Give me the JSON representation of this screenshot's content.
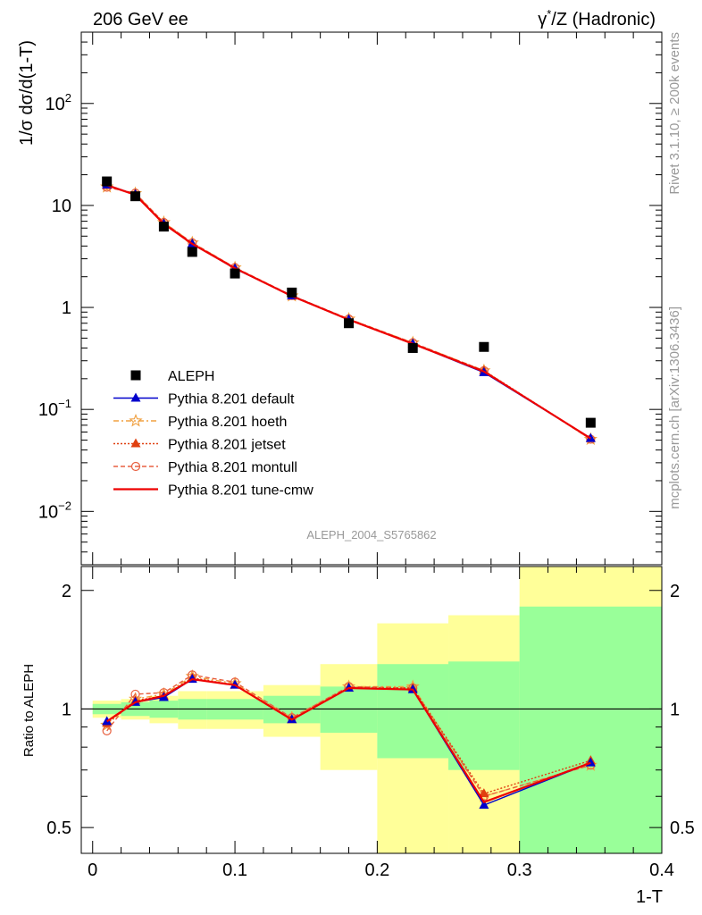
{
  "header": {
    "left": "206 GeV ee",
    "right_prefix": "γ",
    "right_sup": "*",
    "right_suffix": "/Z (Hadronic)"
  },
  "side_text": {
    "rivet": "Rivet 3.1.10, ≥ 200k events",
    "mcplots": "mcplots.cern.ch [arXiv:1306.3436]"
  },
  "analysis_id": "ALEPH_2004_S5765862",
  "colors": {
    "data": "#000000",
    "default": "#0000cc",
    "hoeth": "#f0a040",
    "jetset": "#e04010",
    "montull": "#e86040",
    "tune_cmw": "#ee0000",
    "band_inner": "#99ff99",
    "band_outer": "#ffff99"
  },
  "chart_data": [
    {
      "type": "scatter",
      "panel": "main",
      "ylabel": "1/σ  dσ/d(1-T)",
      "yscale": "log",
      "ylim": [
        0.003,
        500
      ],
      "xlim": [
        -0.008,
        0.4
      ],
      "y_ticks": [
        {
          "value": 0.01,
          "label": "10",
          "sup": "−2"
        },
        {
          "value": 0.1,
          "label": "10",
          "sup": "−1"
        },
        {
          "value": 1,
          "label": "1",
          "sup": ""
        },
        {
          "value": 10,
          "label": "10",
          "sup": ""
        },
        {
          "value": 100,
          "label": "10",
          "sup": "2"
        }
      ],
      "x": [
        0.01,
        0.03,
        0.05,
        0.07,
        0.1,
        0.14,
        0.18,
        0.225,
        0.275,
        0.35
      ],
      "data": {
        "name": "ALEPH",
        "values": [
          17.2,
          12.3,
          6.2,
          3.5,
          2.15,
          1.4,
          0.7,
          0.4,
          0.41,
          0.074
        ]
      },
      "series": [
        {
          "name": "Pythia 8.201 default",
          "key": "default",
          "marker": "triangle",
          "dash": "",
          "values": [
            15.9,
            12.8,
            6.6,
            4.2,
            2.4,
            1.3,
            0.76,
            0.44,
            0.23,
            0.052
          ]
        },
        {
          "name": "Pythia 8.201 hoeth",
          "key": "hoeth",
          "marker": "star",
          "dash": "6,3,2,3",
          "values": [
            15.2,
            13.1,
            6.8,
            4.3,
            2.45,
            1.3,
            0.77,
            0.45,
            0.24,
            0.051
          ]
        },
        {
          "name": "Pythia 8.201 jetset",
          "key": "jetset",
          "marker": "triangle",
          "dash": "2,2",
          "values": [
            15.7,
            12.9,
            6.7,
            4.2,
            2.43,
            1.29,
            0.76,
            0.44,
            0.24,
            0.052
          ]
        },
        {
          "name": "Pythia 8.201 montull",
          "key": "montull",
          "marker": "circle",
          "dash": "5,3",
          "values": [
            15.1,
            13.2,
            6.8,
            4.3,
            2.46,
            1.31,
            0.77,
            0.45,
            0.24,
            0.051
          ]
        },
        {
          "name": "Pythia 8.201 tune-cmw",
          "key": "tune_cmw",
          "marker": "none",
          "dash": "",
          "values": [
            15.8,
            12.7,
            6.6,
            4.2,
            2.42,
            1.29,
            0.76,
            0.44,
            0.235,
            0.052
          ]
        }
      ]
    },
    {
      "type": "line",
      "panel": "ratio",
      "ylabel": "Ratio to ALEPH",
      "xlabel": "1-T",
      "yscale": "log",
      "ylim": [
        0.43,
        2.3
      ],
      "xlim": [
        -0.008,
        0.4
      ],
      "y_ticks": [
        0.5,
        1,
        2
      ],
      "x_ticks": [
        0,
        0.1,
        0.2,
        0.3,
        0.4
      ],
      "x_tick_labels": [
        "0",
        "0.1",
        "0.2",
        "0.3",
        "0.4"
      ],
      "reference": 1,
      "bins": [
        {
          "lo": 0.0,
          "hi": 0.02,
          "inner": [
            0.97,
            1.03
          ],
          "outer": [
            0.95,
            1.05
          ]
        },
        {
          "lo": 0.02,
          "hi": 0.04,
          "inner": [
            0.96,
            1.04
          ],
          "outer": [
            0.94,
            1.06
          ]
        },
        {
          "lo": 0.04,
          "hi": 0.06,
          "inner": [
            0.95,
            1.05
          ],
          "outer": [
            0.92,
            1.08
          ]
        },
        {
          "lo": 0.06,
          "hi": 0.08,
          "inner": [
            0.94,
            1.06
          ],
          "outer": [
            0.89,
            1.11
          ]
        },
        {
          "lo": 0.08,
          "hi": 0.12,
          "inner": [
            0.94,
            1.06
          ],
          "outer": [
            0.89,
            1.11
          ]
        },
        {
          "lo": 0.12,
          "hi": 0.16,
          "inner": [
            0.92,
            1.08
          ],
          "outer": [
            0.85,
            1.15
          ]
        },
        {
          "lo": 0.16,
          "hi": 0.2,
          "inner": [
            0.87,
            1.14
          ],
          "outer": [
            0.7,
            1.3
          ]
        },
        {
          "lo": 0.2,
          "hi": 0.25,
          "inner": [
            0.75,
            1.3
          ],
          "outer": [
            0.37,
            1.65
          ]
        },
        {
          "lo": 0.25,
          "hi": 0.3,
          "inner": [
            0.7,
            1.32
          ],
          "outer": [
            0.36,
            1.73
          ]
        },
        {
          "lo": 0.3,
          "hi": 0.4,
          "inner": [
            0.36,
            1.82
          ],
          "outer": [
            0.36,
            2.3
          ]
        }
      ],
      "x": [
        0.01,
        0.03,
        0.05,
        0.07,
        0.1,
        0.14,
        0.18,
        0.225,
        0.275,
        0.35
      ],
      "series": [
        {
          "name": "Pythia 8.201 default",
          "key": "default",
          "marker": "triangle",
          "dash": "",
          "values": [
            0.93,
            1.04,
            1.07,
            1.19,
            1.15,
            0.94,
            1.13,
            1.12,
            0.57,
            0.73
          ]
        },
        {
          "name": "Pythia 8.201 hoeth",
          "key": "hoeth",
          "marker": "star",
          "dash": "6,3,2,3",
          "values": [
            0.91,
            1.06,
            1.09,
            1.21,
            1.16,
            0.95,
            1.14,
            1.14,
            0.6,
            0.72
          ]
        },
        {
          "name": "Pythia 8.201 jetset",
          "key": "jetset",
          "marker": "triangle",
          "dash": "2,2",
          "values": [
            0.92,
            1.05,
            1.08,
            1.2,
            1.15,
            0.94,
            1.13,
            1.13,
            0.61,
            0.74
          ]
        },
        {
          "name": "Pythia 8.201 montull",
          "key": "montull",
          "marker": "circle",
          "dash": "5,3",
          "values": [
            0.88,
            1.09,
            1.1,
            1.22,
            1.17,
            0.95,
            1.14,
            1.13,
            0.6,
            0.72
          ]
        },
        {
          "name": "Pythia 8.201 tune-cmw",
          "key": "tune_cmw",
          "marker": "none",
          "dash": "",
          "values": [
            0.93,
            1.04,
            1.08,
            1.19,
            1.15,
            0.94,
            1.13,
            1.12,
            0.58,
            0.73
          ]
        }
      ]
    }
  ]
}
